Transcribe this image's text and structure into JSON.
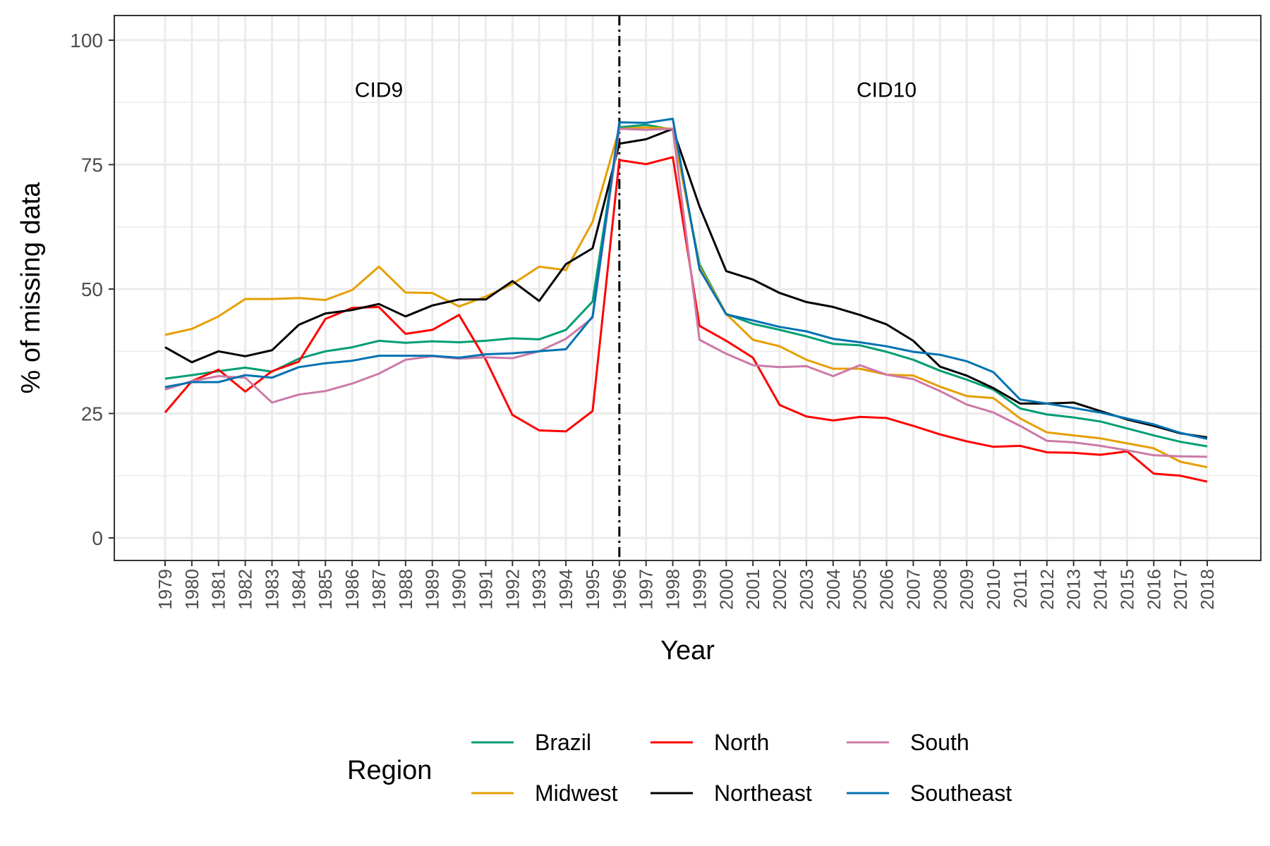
{
  "chart_data": {
    "type": "line",
    "xlabel": "Year",
    "ylabel": "% of missing data",
    "xlim": [
      1979,
      2018
    ],
    "ylim": [
      0,
      100
    ],
    "x_ticks": [
      1979,
      1980,
      1981,
      1982,
      1983,
      1984,
      1985,
      1986,
      1987,
      1988,
      1989,
      1990,
      1991,
      1992,
      1993,
      1994,
      1995,
      1996,
      1997,
      1998,
      1999,
      2000,
      2001,
      2002,
      2003,
      2004,
      2005,
      2006,
      2007,
      2008,
      2009,
      2010,
      2011,
      2012,
      2013,
      2014,
      2015,
      2016,
      2017,
      2018
    ],
    "y_ticks": [
      0,
      25,
      50,
      75,
      100
    ],
    "grid": true,
    "vline": {
      "x": 1996,
      "style": "dot-dash"
    },
    "annotations": [
      {
        "text": "CID9",
        "x": 1987,
        "y": 90
      },
      {
        "text": "CID10",
        "x": 2006,
        "y": 90
      }
    ],
    "legend": {
      "title": "Region",
      "placement": "bottom"
    },
    "x": [
      1979,
      1980,
      1981,
      1982,
      1983,
      1984,
      1985,
      1986,
      1987,
      1988,
      1989,
      1990,
      1991,
      1992,
      1993,
      1994,
      1995,
      1996,
      1997,
      1998,
      1999,
      2000,
      2001,
      2002,
      2003,
      2004,
      2005,
      2006,
      2007,
      2008,
      2009,
      2010,
      2011,
      2012,
      2013,
      2014,
      2015,
      2016,
      2017,
      2018
    ],
    "series": [
      {
        "name": "Brazil",
        "color": "#009E73",
        "values": [
          32,
          32.7,
          33.5,
          34.2,
          33.4,
          36,
          37.5,
          38.3,
          39.6,
          39.2,
          39.5,
          39.3,
          39.6,
          40.1,
          39.9,
          41.8,
          47.5,
          82.5,
          83,
          82,
          55,
          45,
          43,
          41.8,
          40.5,
          39,
          38.7,
          37.4,
          35.8,
          33.6,
          31.8,
          29.8,
          26,
          24.8,
          24.2,
          23.4,
          22,
          20.6,
          19.3,
          18.4
        ]
      },
      {
        "name": "Midwest",
        "color": "#E69F00",
        "values": [
          40.8,
          42,
          44.5,
          48,
          48,
          48.2,
          47.8,
          49.8,
          54.5,
          49.3,
          49.2,
          46.5,
          48.5,
          51,
          54.5,
          53.8,
          63.5,
          82.2,
          82.5,
          82.2,
          54.5,
          45,
          39.8,
          38.5,
          35.8,
          34,
          34,
          32.8,
          32.6,
          30.4,
          28.5,
          28.1,
          24,
          21.2,
          20.6,
          20,
          19,
          18,
          15.3,
          14.2
        ]
      },
      {
        "name": "North",
        "color": "#FF0000",
        "values": [
          25.2,
          31.5,
          33.8,
          29.4,
          33.5,
          35.4,
          44,
          46.2,
          46.4,
          41,
          41.8,
          44.8,
          35.8,
          24.7,
          21.6,
          21.4,
          25.5,
          75.9,
          75.1,
          76.5,
          42.6,
          39.6,
          36.2,
          26.7,
          24.4,
          23.6,
          24.3,
          24.1,
          22.5,
          20.8,
          19.4,
          18.3,
          18.5,
          17.2,
          17.1,
          16.7,
          17.4,
          12.9,
          12.5,
          11.3
        ]
      },
      {
        "name": "Northeast",
        "color": "#000000",
        "values": [
          38.3,
          35.3,
          37.5,
          36.5,
          37.7,
          42.8,
          45.1,
          45.8,
          47,
          44.5,
          46.7,
          47.9,
          47.9,
          51.6,
          47.6,
          55,
          58.2,
          79.2,
          80.1,
          82.2,
          66.6,
          53.6,
          51.9,
          49.2,
          47.4,
          46.4,
          44.8,
          42.9,
          39.6,
          34.4,
          32.6,
          30.1,
          27,
          27,
          27.2,
          25.5,
          23.8,
          22.5,
          21,
          20.2
        ]
      },
      {
        "name": "South",
        "color": "#CC79A7",
        "values": [
          29.8,
          31.5,
          32.5,
          32.2,
          27.2,
          28.8,
          29.5,
          31,
          33,
          35.8,
          36.5,
          36,
          36.3,
          36.1,
          37.5,
          40,
          44.2,
          82.2,
          82,
          82.2,
          39.8,
          37,
          34.7,
          34.3,
          34.5,
          32.5,
          34.7,
          32.8,
          31.9,
          29.5,
          26.8,
          25.2,
          22.5,
          19.5,
          19.2,
          18.5,
          17.6,
          16.6,
          16.4,
          16.3
        ]
      },
      {
        "name": "Southeast",
        "color": "#0072B2",
        "values": [
          30.3,
          31.3,
          31.3,
          32.7,
          32.2,
          34.3,
          35.1,
          35.6,
          36.6,
          36.6,
          36.6,
          36.2,
          36.9,
          37.1,
          37.5,
          37.9,
          44.5,
          83.5,
          83.4,
          84.2,
          54,
          44.9,
          43.7,
          42.4,
          41.5,
          40,
          39.3,
          38.5,
          37.4,
          36.8,
          35.5,
          33.3,
          27.8,
          27,
          26.1,
          25.2,
          24,
          22.8,
          21.1,
          19.9
        ]
      }
    ]
  }
}
